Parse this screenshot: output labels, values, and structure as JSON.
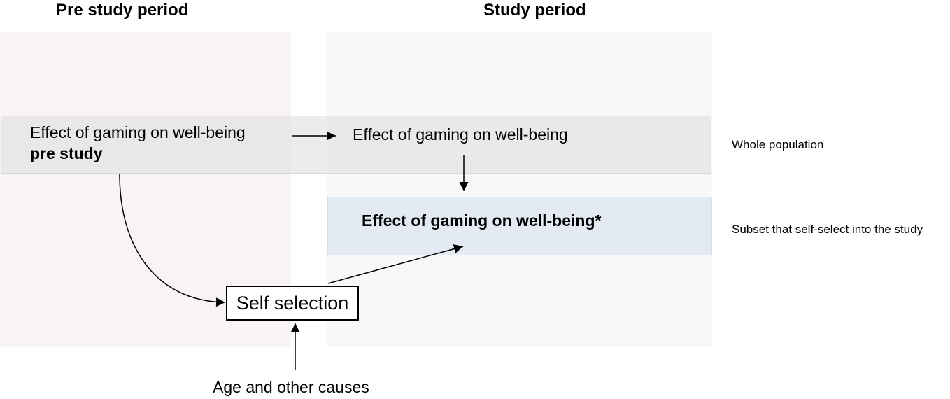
{
  "headings": {
    "pre_study": "Pre study period",
    "study": "Study period"
  },
  "nodes": {
    "pre_effect_line1": "Effect of gaming on well-being",
    "pre_effect_line2": "pre study",
    "study_effect": "Effect of gaming on well-being",
    "subset_effect": "Effect of gaming on well-being*",
    "self_selection": "Self selection",
    "age_causes": "Age and other causes"
  },
  "row_labels": {
    "whole_population": "Whole population",
    "subset": "Subset that self-select into the study"
  },
  "colors": {
    "pre_panel": "#f8f4f5",
    "study_panel": "#f8f8f8",
    "whole_band": "#e4e4e6",
    "subset_band": "#e3eaf3"
  }
}
